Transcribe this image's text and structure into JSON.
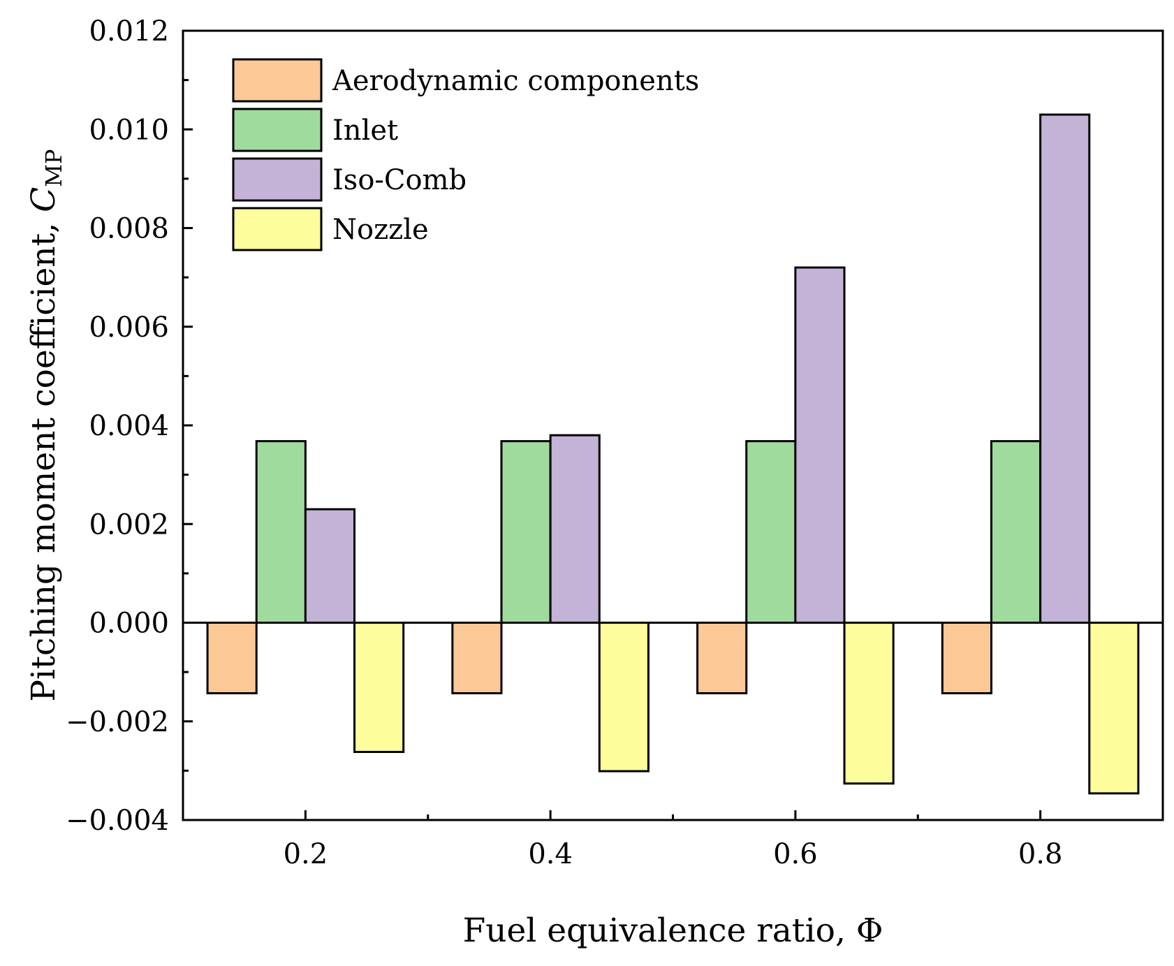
{
  "chart_data": {
    "type": "bar",
    "title": "",
    "xlabel": "Fuel equivalence ratio, Φ",
    "ylabel": {
      "main": "Pitching moment coefficient, ",
      "symbol": "C",
      "subscript": "MP"
    },
    "categories": [
      "0.2",
      "0.4",
      "0.6",
      "0.8"
    ],
    "x_range": [
      0.1,
      0.9
    ],
    "ylim": [
      -0.004,
      0.012
    ],
    "y_ticks": [
      -0.004,
      -0.002,
      0.0,
      0.002,
      0.004,
      0.006,
      0.008,
      0.01,
      0.012
    ],
    "y_tick_labels": [
      "−0.004",
      "−0.002",
      "0.000",
      "0.002",
      "0.004",
      "0.006",
      "0.008",
      "0.010",
      "0.012"
    ],
    "x_ticks": [
      0.2,
      0.4,
      0.6,
      0.8
    ],
    "x_minor_ticks": [
      0.3,
      0.5,
      0.7
    ],
    "grid": false,
    "legend_position": "top-left",
    "series": [
      {
        "name": "Aerodynamic components",
        "color": "#FCC896",
        "values": [
          -0.00143,
          -0.00143,
          -0.00143,
          -0.00143
        ]
      },
      {
        "name": "Inlet",
        "color": "#A0DB9E",
        "values": [
          0.00368,
          0.00368,
          0.00368,
          0.00368
        ]
      },
      {
        "name": "Iso-Comb",
        "color": "#C3B3D7",
        "values": [
          0.0023,
          0.0038,
          0.0072,
          0.0103
        ]
      },
      {
        "name": "Nozzle",
        "color": "#FDFD9C",
        "values": [
          -0.00262,
          -0.00301,
          -0.00326,
          -0.00346
        ]
      }
    ]
  }
}
